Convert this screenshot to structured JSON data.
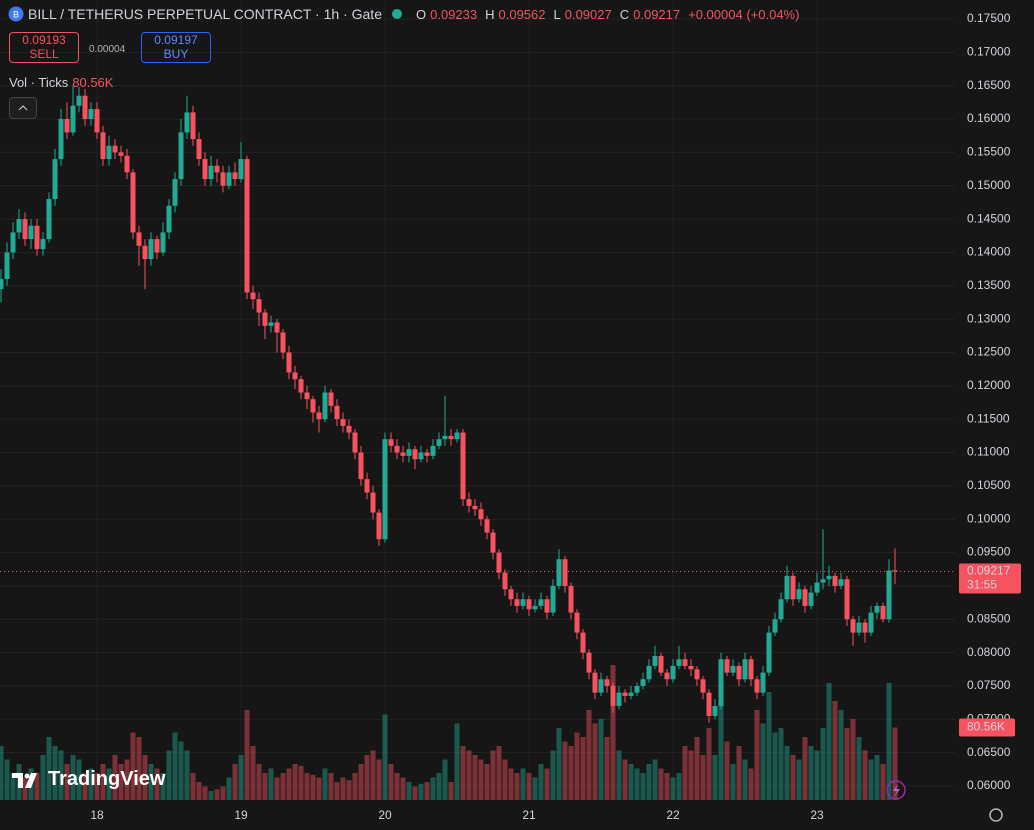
{
  "chart_data": {
    "type": "candlestick",
    "title": "BILL / TETHERUS PERPETUAL CONTRACT · 1h · Gate",
    "ohlc_keys": [
      "O",
      "H",
      "L",
      "C"
    ],
    "change": "+0.00004 (+0.04%)",
    "trade": {
      "sell_price": 0.09193,
      "sell_label": "SELL",
      "spread": 4e-05,
      "buy_price": 0.09197,
      "buy_label": "BUY"
    },
    "volume_title": "Vol · Ticks",
    "countdown": "31:55",
    "brand": "TradingView",
    "up_color": "#22ab94",
    "down_color": "#f7525f",
    "grid": true,
    "ylim": [
      0.0579,
      0.17785
    ],
    "yticks": [
      {
        "value": 0.06,
        "label": "0.06000"
      },
      {
        "value": 0.065,
        "label": "0.06500"
      },
      {
        "value": 0.07,
        "label": "0.07000"
      },
      {
        "value": 0.075,
        "label": "0.07500"
      },
      {
        "value": 0.08,
        "label": "0.08000"
      },
      {
        "value": 0.085,
        "label": "0.08500"
      },
      {
        "value": 0.09,
        "label": "0.09000"
      },
      {
        "value": 0.095,
        "label": "0.09500"
      },
      {
        "value": 0.1,
        "label": "0.10000"
      },
      {
        "value": 0.105,
        "label": "0.10500"
      },
      {
        "value": 0.11,
        "label": "0.11000"
      },
      {
        "value": 0.115,
        "label": "0.11500"
      },
      {
        "value": 0.12,
        "label": "0.12000"
      },
      {
        "value": 0.125,
        "label": "0.12500"
      },
      {
        "value": 0.13,
        "label": "0.13000"
      },
      {
        "value": 0.135,
        "label": "0.13500"
      },
      {
        "value": 0.14,
        "label": "0.14000"
      },
      {
        "value": 0.145,
        "label": "0.14500"
      },
      {
        "value": 0.15,
        "label": "0.15000"
      },
      {
        "value": 0.155,
        "label": "0.15500"
      },
      {
        "value": 0.16,
        "label": "0.16000"
      },
      {
        "value": 0.165,
        "label": "0.16500"
      },
      {
        "value": 0.17,
        "label": "0.17000"
      },
      {
        "value": 0.175,
        "label": "0.17500"
      }
    ],
    "categories": [
      null,
      null,
      null,
      null,
      null,
      null,
      null,
      null,
      null,
      null,
      null,
      null,
      null,
      null,
      null,
      null,
      "18",
      null,
      null,
      null,
      null,
      null,
      null,
      null,
      null,
      null,
      null,
      null,
      null,
      null,
      null,
      null,
      null,
      null,
      null,
      null,
      null,
      null,
      null,
      null,
      "19",
      null,
      null,
      null,
      null,
      null,
      null,
      null,
      null,
      null,
      null,
      null,
      null,
      null,
      null,
      null,
      null,
      null,
      null,
      null,
      null,
      null,
      null,
      null,
      "20",
      null,
      null,
      null,
      null,
      null,
      null,
      null,
      null,
      null,
      null,
      null,
      null,
      null,
      null,
      null,
      null,
      null,
      null,
      null,
      null,
      null,
      null,
      null,
      "21",
      null,
      null,
      null,
      null,
      null,
      null,
      null,
      null,
      null,
      null,
      null,
      null,
      null,
      null,
      null,
      null,
      null,
      null,
      null,
      null,
      null,
      null,
      null,
      "22",
      null,
      null,
      null,
      null,
      null,
      null,
      null,
      null,
      null,
      null,
      null,
      null,
      null,
      null,
      null,
      null,
      null,
      null,
      null,
      null,
      null,
      null,
      null,
      "23",
      null,
      null,
      null,
      null,
      null,
      null,
      null,
      null,
      null,
      null,
      null,
      null,
      null
    ],
    "open": [
      0.1345,
      0.136,
      0.14,
      0.143,
      0.145,
      0.142,
      0.144,
      0.1405,
      0.142,
      0.148,
      0.154,
      0.16,
      0.158,
      0.162,
      0.1635,
      0.16,
      0.1615,
      0.158,
      0.154,
      0.156,
      0.155,
      0.1545,
      0.152,
      0.143,
      0.141,
      0.139,
      0.142,
      0.14,
      0.143,
      0.147,
      0.151,
      0.158,
      0.161,
      0.157,
      0.154,
      0.151,
      0.153,
      0.152,
      0.15,
      0.152,
      0.151,
      0.154,
      0.134,
      0.133,
      0.131,
      0.129,
      0.1295,
      0.128,
      0.125,
      0.122,
      0.121,
      0.119,
      0.118,
      0.116,
      0.115,
      0.119,
      0.117,
      0.115,
      0.114,
      0.113,
      0.11,
      0.106,
      0.104,
      0.101,
      0.097,
      0.112,
      0.111,
      0.11,
      0.1095,
      0.1105,
      0.109,
      0.11,
      0.1095,
      0.111,
      0.112,
      0.1125,
      0.112,
      0.113,
      0.103,
      0.102,
      0.1015,
      0.1,
      0.098,
      0.095,
      0.092,
      0.0895,
      0.088,
      0.087,
      0.088,
      0.0865,
      0.087,
      0.088,
      0.086,
      0.09,
      0.094,
      0.09,
      0.086,
      0.083,
      0.08,
      0.077,
      0.074,
      0.076,
      0.075,
      0.072,
      0.074,
      0.0735,
      0.074,
      0.075,
      0.076,
      0.078,
      0.0795,
      0.077,
      0.076,
      0.078,
      0.079,
      0.078,
      0.0775,
      0.076,
      0.074,
      0.0705,
      0.072,
      0.079,
      0.077,
      0.078,
      0.076,
      0.079,
      0.076,
      0.074,
      0.077,
      0.083,
      0.085,
      0.088,
      0.0915,
      0.088,
      0.0895,
      0.087,
      0.089,
      0.0905,
      0.091,
      0.0915,
      0.09,
      0.091,
      0.085,
      0.083,
      0.0845,
      0.083,
      0.086,
      0.087,
      0.085,
      0.09233
    ],
    "high": [
      0.1375,
      0.1415,
      0.1445,
      0.1465,
      0.146,
      0.145,
      0.145,
      0.143,
      0.149,
      0.1555,
      0.1615,
      0.1625,
      0.165,
      0.1648,
      0.1645,
      0.1625,
      0.1625,
      0.159,
      0.1575,
      0.157,
      0.156,
      0.1555,
      0.1525,
      0.144,
      0.142,
      0.143,
      0.1425,
      0.1445,
      0.148,
      0.152,
      0.16,
      0.1635,
      0.162,
      0.158,
      0.155,
      0.1545,
      0.154,
      0.153,
      0.153,
      0.1535,
      0.1565,
      0.1545,
      0.135,
      0.134,
      0.1315,
      0.1305,
      0.13,
      0.1285,
      0.126,
      0.123,
      0.1215,
      0.12,
      0.1185,
      0.117,
      0.12,
      0.1195,
      0.118,
      0.116,
      0.115,
      0.1135,
      0.111,
      0.107,
      0.105,
      0.1015,
      0.113,
      0.113,
      0.112,
      0.111,
      0.1115,
      0.111,
      0.111,
      0.1105,
      0.112,
      0.113,
      0.1185,
      0.1135,
      0.1135,
      0.1135,
      0.104,
      0.103,
      0.1025,
      0.1005,
      0.0985,
      0.0955,
      0.0925,
      0.09,
      0.089,
      0.089,
      0.0885,
      0.088,
      0.089,
      0.0885,
      0.091,
      0.0955,
      0.0945,
      0.0905,
      0.0865,
      0.0835,
      0.0805,
      0.0775,
      0.077,
      0.0765,
      0.0755,
      0.075,
      0.0745,
      0.075,
      0.0755,
      0.077,
      0.079,
      0.081,
      0.08,
      0.0775,
      0.079,
      0.081,
      0.08,
      0.079,
      0.078,
      0.0765,
      0.0745,
      0.073,
      0.08,
      0.0795,
      0.079,
      0.0785,
      0.08,
      0.0795,
      0.0765,
      0.078,
      0.084,
      0.086,
      0.089,
      0.093,
      0.092,
      0.0905,
      0.09,
      0.09,
      0.092,
      0.0985,
      0.093,
      0.092,
      0.092,
      0.0915,
      0.0855,
      0.0855,
      0.085,
      0.087,
      0.0875,
      0.0875,
      0.094,
      0.09562
    ],
    "low": [
      0.1325,
      0.135,
      0.139,
      0.142,
      0.141,
      0.1405,
      0.1395,
      0.1395,
      0.1415,
      0.147,
      0.153,
      0.157,
      0.1575,
      0.161,
      0.159,
      0.159,
      0.157,
      0.153,
      0.153,
      0.154,
      0.1535,
      0.151,
      0.142,
      0.138,
      0.1345,
      0.138,
      0.139,
      0.1395,
      0.142,
      0.146,
      0.15,
      0.157,
      0.156,
      0.153,
      0.15,
      0.15,
      0.1505,
      0.149,
      0.1495,
      0.15,
      0.1505,
      0.133,
      0.1315,
      0.129,
      0.127,
      0.128,
      0.125,
      0.124,
      0.121,
      0.1195,
      0.118,
      0.1165,
      0.1145,
      0.113,
      0.1145,
      0.116,
      0.114,
      0.113,
      0.112,
      0.109,
      0.105,
      0.103,
      0.1,
      0.096,
      0.0965,
      0.11,
      0.109,
      0.1085,
      0.1085,
      0.1075,
      0.1085,
      0.1085,
      0.109,
      0.1105,
      0.111,
      0.111,
      0.1115,
      0.102,
      0.101,
      0.1005,
      0.099,
      0.097,
      0.094,
      0.091,
      0.0885,
      0.087,
      0.086,
      0.0865,
      0.0855,
      0.086,
      0.0865,
      0.085,
      0.0855,
      0.0895,
      0.089,
      0.085,
      0.082,
      0.079,
      0.076,
      0.073,
      0.0735,
      0.074,
      0.071,
      0.0715,
      0.0725,
      0.073,
      0.0735,
      0.0745,
      0.0755,
      0.0775,
      0.0765,
      0.075,
      0.0755,
      0.0775,
      0.0775,
      0.0765,
      0.075,
      0.073,
      0.0695,
      0.07,
      0.0715,
      0.0765,
      0.0765,
      0.075,
      0.0755,
      0.075,
      0.073,
      0.0735,
      0.0765,
      0.0825,
      0.0845,
      0.0875,
      0.087,
      0.0875,
      0.086,
      0.0865,
      0.0885,
      0.0895,
      0.09,
      0.089,
      0.0895,
      0.084,
      0.081,
      0.0825,
      0.0815,
      0.0825,
      0.085,
      0.0845,
      0.0845,
      0.09027
    ],
    "close": [
      0.136,
      0.14,
      0.143,
      0.145,
      0.142,
      0.144,
      0.1405,
      0.142,
      0.148,
      0.154,
      0.16,
      0.158,
      0.162,
      0.1635,
      0.16,
      0.1615,
      0.158,
      0.154,
      0.156,
      0.155,
      0.1545,
      0.152,
      0.143,
      0.141,
      0.139,
      0.142,
      0.14,
      0.143,
      0.147,
      0.151,
      0.158,
      0.161,
      0.157,
      0.154,
      0.151,
      0.153,
      0.152,
      0.15,
      0.152,
      0.151,
      0.154,
      0.134,
      0.133,
      0.131,
      0.129,
      0.1295,
      0.128,
      0.125,
      0.122,
      0.121,
      0.119,
      0.118,
      0.116,
      0.115,
      0.119,
      0.117,
      0.115,
      0.114,
      0.113,
      0.11,
      0.106,
      0.104,
      0.101,
      0.097,
      0.112,
      0.111,
      0.11,
      0.1095,
      0.1105,
      0.109,
      0.11,
      0.1095,
      0.111,
      0.112,
      0.1125,
      0.112,
      0.113,
      0.103,
      0.102,
      0.1015,
      0.1,
      0.098,
      0.095,
      0.092,
      0.0895,
      0.088,
      0.087,
      0.088,
      0.0865,
      0.087,
      0.088,
      0.086,
      0.09,
      0.094,
      0.09,
      0.086,
      0.083,
      0.08,
      0.077,
      0.074,
      0.076,
      0.075,
      0.072,
      0.074,
      0.0735,
      0.074,
      0.075,
      0.076,
      0.078,
      0.0795,
      0.077,
      0.076,
      0.078,
      0.079,
      0.078,
      0.0775,
      0.076,
      0.074,
      0.0705,
      0.072,
      0.079,
      0.077,
      0.078,
      0.076,
      0.079,
      0.076,
      0.074,
      0.077,
      0.083,
      0.085,
      0.088,
      0.0915,
      0.088,
      0.0895,
      0.087,
      0.089,
      0.0905,
      0.091,
      0.0915,
      0.09,
      0.091,
      0.085,
      0.083,
      0.0845,
      0.083,
      0.086,
      0.087,
      0.085,
      0.09233,
      0.09217
    ],
    "volume": {
      "last_label": "80.56K",
      "values": [
        60000,
        45000,
        30000,
        40000,
        25000,
        35000,
        30000,
        50000,
        70000,
        60000,
        55000,
        40000,
        50000,
        45000,
        30000,
        35000,
        30000,
        40000,
        35000,
        50000,
        40000,
        45000,
        75000,
        70000,
        50000,
        40000,
        35000,
        30000,
        55000,
        75000,
        65000,
        55000,
        30000,
        20000,
        15000,
        10000,
        12000,
        15000,
        25000,
        40000,
        50000,
        100000,
        60000,
        40000,
        30000,
        35000,
        25000,
        30000,
        35000,
        40000,
        38000,
        30000,
        28000,
        25000,
        35000,
        30000,
        20000,
        25000,
        22000,
        30000,
        40000,
        50000,
        55000,
        45000,
        95000,
        40000,
        30000,
        25000,
        20000,
        15000,
        18000,
        20000,
        25000,
        30000,
        45000,
        20000,
        85000,
        60000,
        55000,
        50000,
        45000,
        40000,
        55000,
        60000,
        45000,
        35000,
        30000,
        35000,
        30000,
        25000,
        40000,
        35000,
        55000,
        80000,
        65000,
        60000,
        75000,
        70000,
        100000,
        85000,
        90000,
        70000,
        150000,
        55000,
        45000,
        40000,
        35000,
        30000,
        40000,
        45000,
        35000,
        30000,
        25000,
        30000,
        60000,
        55000,
        70000,
        50000,
        80000,
        50000,
        120000,
        65000,
        40000,
        60000,
        45000,
        35000,
        100000,
        85000,
        120000,
        75000,
        80000,
        60000,
        50000,
        45000,
        70000,
        60000,
        55000,
        80000,
        130000,
        110000,
        100000,
        80000,
        90000,
        70000,
        55000,
        45000,
        50000,
        40000,
        130000,
        80560
      ]
    }
  }
}
